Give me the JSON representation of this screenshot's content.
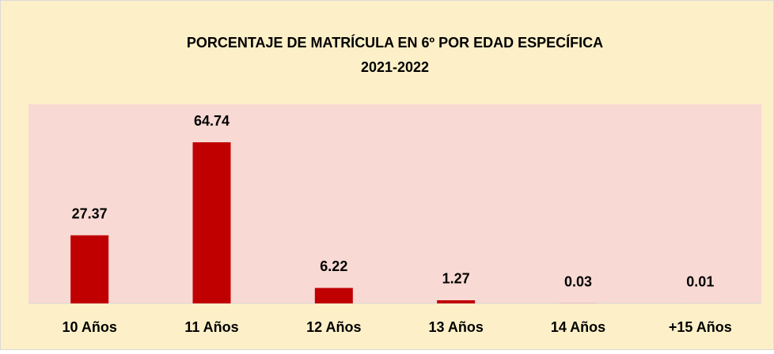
{
  "chart_data": {
    "type": "bar",
    "title": "PORCENTAJE DE MATRÍCULA EN 6º POR EDAD ESPECÍFICA",
    "subtitle": "2021-2022",
    "categories": [
      "10 Años",
      "11 Años",
      "12 Años",
      "13 Años",
      "14 Años",
      "+15 Años"
    ],
    "values": [
      27.37,
      64.74,
      6.22,
      1.27,
      0.03,
      0.01
    ],
    "color": "#c00000",
    "ylim": [
      0,
      80
    ]
  }
}
